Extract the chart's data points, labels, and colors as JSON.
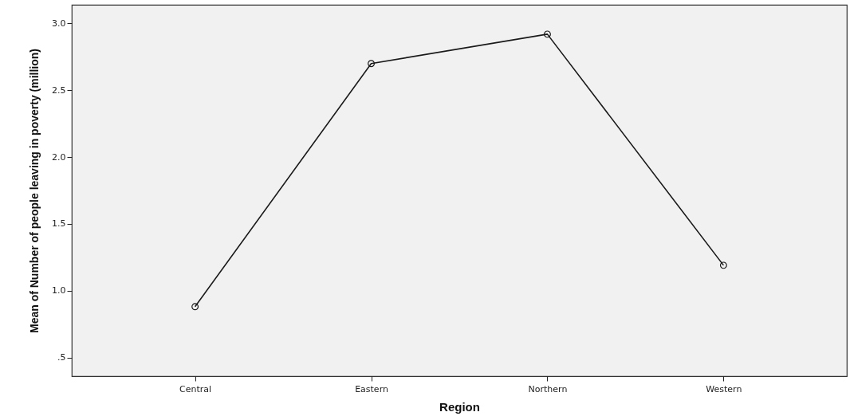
{
  "chart_data": {
    "type": "line",
    "xlabel": "Region",
    "ylabel": "Mean of Number of people leaving in poverty (million)",
    "categories": [
      "Central",
      "Eastern",
      "Northern",
      "Western"
    ],
    "series": [
      {
        "color": "#1a1a1a",
        "values": [
          0.88,
          2.7,
          2.92,
          1.19
        ]
      }
    ],
    "ylim": [
      0.36,
      3.14
    ],
    "yticks": [
      {
        "value": 0.5,
        "label": ".5"
      },
      {
        "value": 1,
        "label": "1.0"
      },
      {
        "value": 1.5,
        "label": "1.5"
      },
      {
        "value": 2,
        "label": "2.0"
      },
      {
        "value": 2.5,
        "label": "2.5"
      },
      {
        "value": 3,
        "label": "3.0"
      }
    ],
    "grid": false,
    "marker": "circle",
    "line_style": "solid"
  }
}
